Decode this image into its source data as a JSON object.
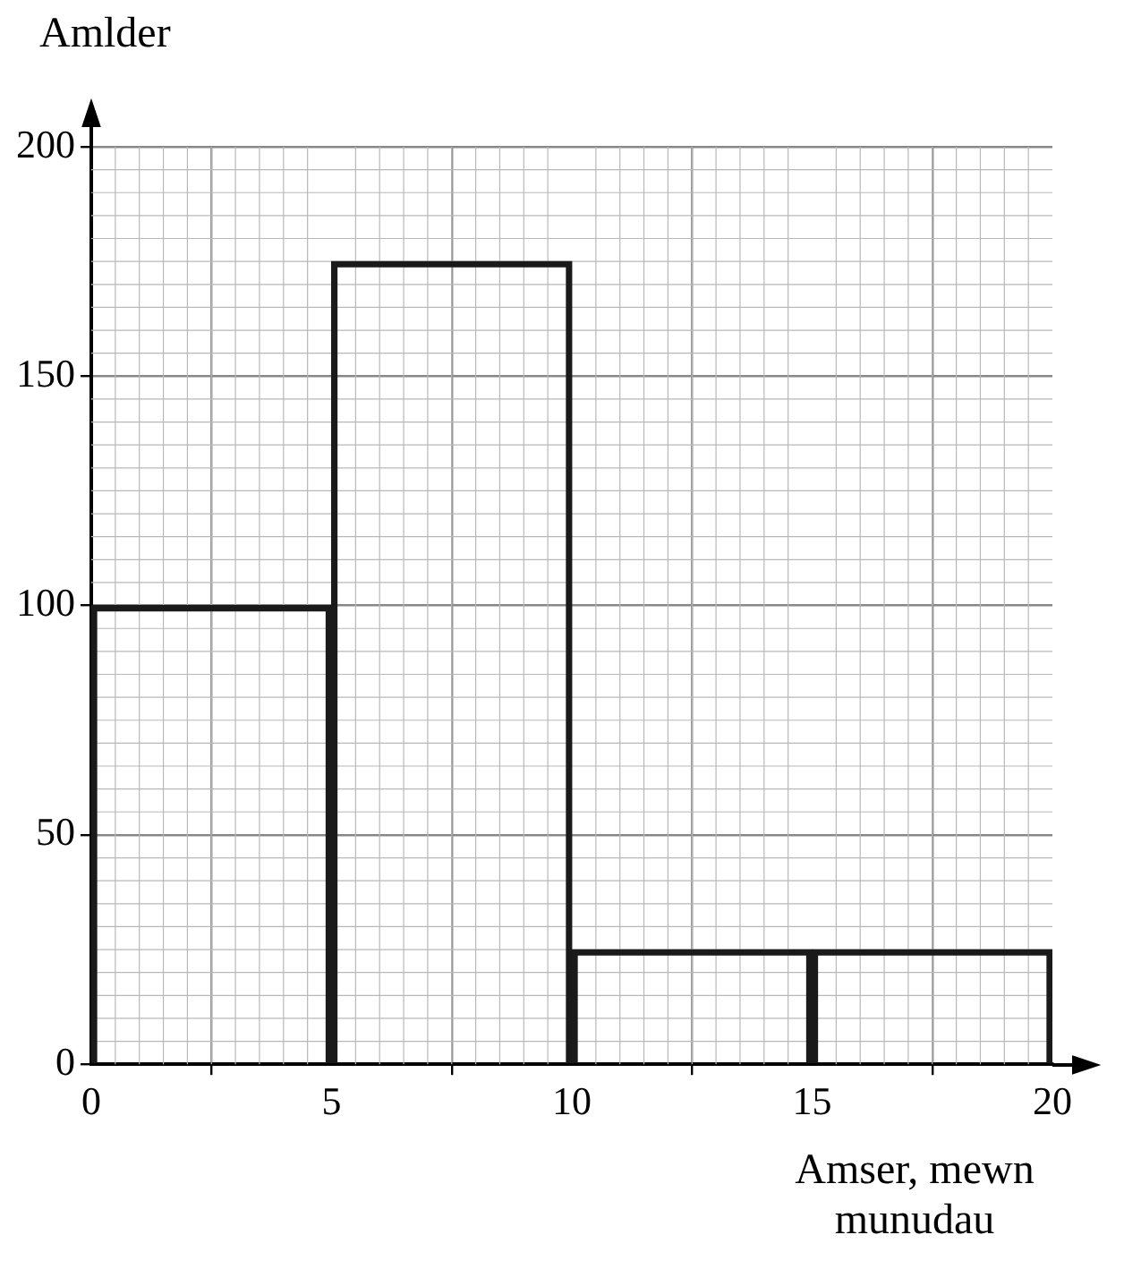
{
  "chart_data": {
    "type": "histogram",
    "xlabel": "Amser, mewn munudau",
    "ylabel": "Amlder",
    "bins": [
      0,
      5,
      10,
      15,
      20
    ],
    "values": [
      100,
      175,
      25,
      25
    ],
    "color": "#1a1a1a",
    "xlim": [
      0,
      20
    ],
    "xticks": [
      0,
      5,
      10,
      15,
      20
    ],
    "ylim": [
      0,
      200
    ],
    "yticks": [
      0,
      50,
      100,
      150,
      200
    ],
    "grid": true,
    "legend": false
  }
}
